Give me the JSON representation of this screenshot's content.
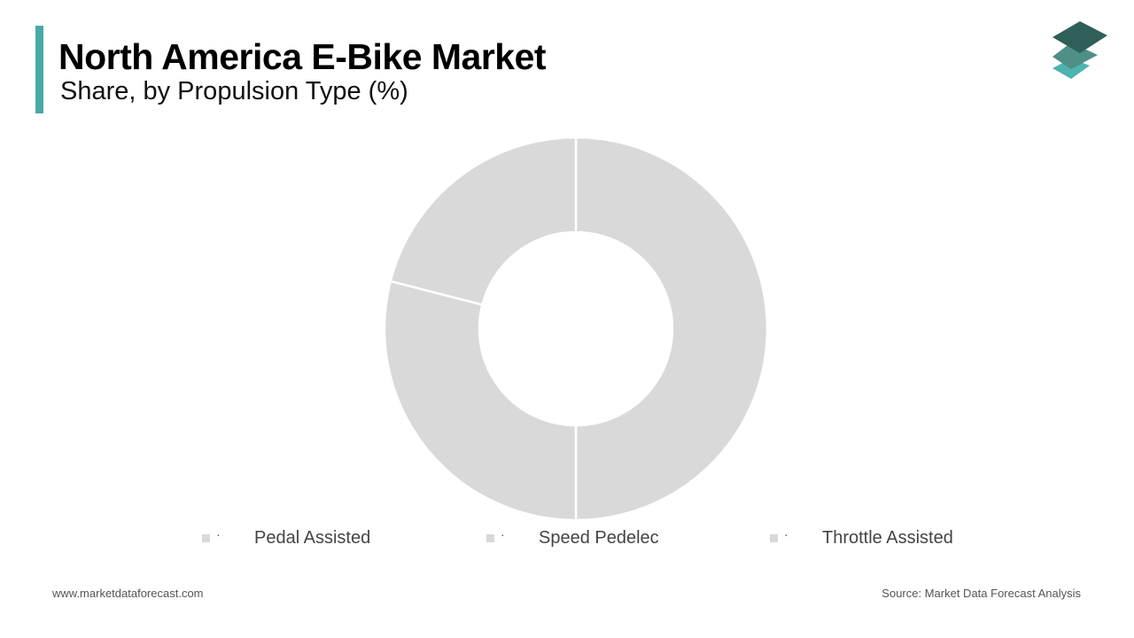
{
  "header": {
    "title": "North America E-Bike Market",
    "subtitle": "Share, by Propulsion Type (%)",
    "accent_color": "#4aa9a6"
  },
  "logo": {
    "icon": "stacked-layers-logo",
    "colors": [
      "#2f5f59",
      "#4e8f86",
      "#4fb3ae"
    ]
  },
  "chart_data": {
    "type": "pie",
    "donut": true,
    "title": "North America E-Bike Market",
    "subtitle": "Share, by Propulsion Type (%)",
    "categories": [
      "Pedal Assisted",
      "Speed Pedelec",
      "Throttle Assisted"
    ],
    "values": [
      50,
      29,
      21
    ],
    "slice_color": "#d9d9d9",
    "separator_color": "#ffffff",
    "legend_position": "bottom"
  },
  "legend": {
    "marker": "·",
    "items": [
      {
        "label": "Pedal Assisted"
      },
      {
        "label": "Speed Pedelec"
      },
      {
        "label": "Throttle Assisted"
      }
    ]
  },
  "footer": {
    "website": "www.marketdataforecast.com",
    "source": "Source: Market Data Forecast Analysis"
  }
}
